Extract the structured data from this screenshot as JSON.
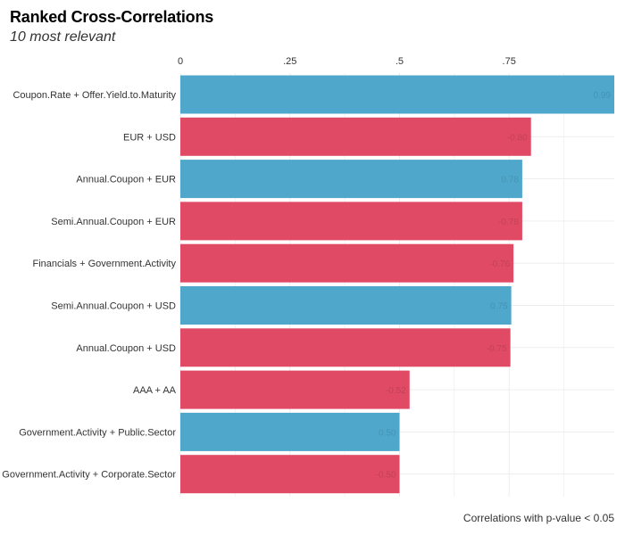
{
  "chart_data": {
    "type": "bar",
    "orientation": "horizontal",
    "title": "Ranked Cross-Correlations",
    "subtitle": "10 most relevant",
    "caption": "Correlations with p-value < 0.05",
    "xlabel": "",
    "ylabel": "",
    "x_ticks": [
      {
        "value": 0,
        "label": "0"
      },
      {
        "value": 0.25,
        "label": ".25"
      },
      {
        "value": 0.5,
        "label": ".5"
      },
      {
        "value": 0.75,
        "label": ".75"
      }
    ],
    "xlim": [
      0,
      0.99
    ],
    "axis_position": "top",
    "grid": true,
    "legend": "none",
    "colors": {
      "positive": "#4FA8CC",
      "negative": "#E04A65"
    },
    "bars": [
      {
        "category": "Coupon.Rate + Offer.Yield.to.Maturity",
        "value": 0.99,
        "label": "0.99",
        "sign": "positive"
      },
      {
        "category": "EUR + USD",
        "value": 0.8,
        "label": "-0.80",
        "sign": "negative"
      },
      {
        "category": "Annual.Coupon + EUR",
        "value": 0.78,
        "label": "0.78",
        "sign": "positive"
      },
      {
        "category": "Semi.Annual.Coupon + EUR",
        "value": 0.78,
        "label": "-0.78",
        "sign": "negative"
      },
      {
        "category": "Financials + Government.Activity",
        "value": 0.76,
        "label": "-0.76",
        "sign": "negative"
      },
      {
        "category": "Semi.Annual.Coupon + USD",
        "value": 0.755,
        "label": "0.75",
        "sign": "positive"
      },
      {
        "category": "Annual.Coupon + USD",
        "value": 0.753,
        "label": "-0.75",
        "sign": "negative"
      },
      {
        "category": "AAA + AA",
        "value": 0.523,
        "label": "-0.52",
        "sign": "negative"
      },
      {
        "category": "Government.Activity + Public.Sector",
        "value": 0.5,
        "label": "0.50",
        "sign": "positive"
      },
      {
        "category": "Government.Activity + Corporate.Sector",
        "value": 0.5,
        "label": "-0.50",
        "sign": "negative"
      }
    ]
  }
}
